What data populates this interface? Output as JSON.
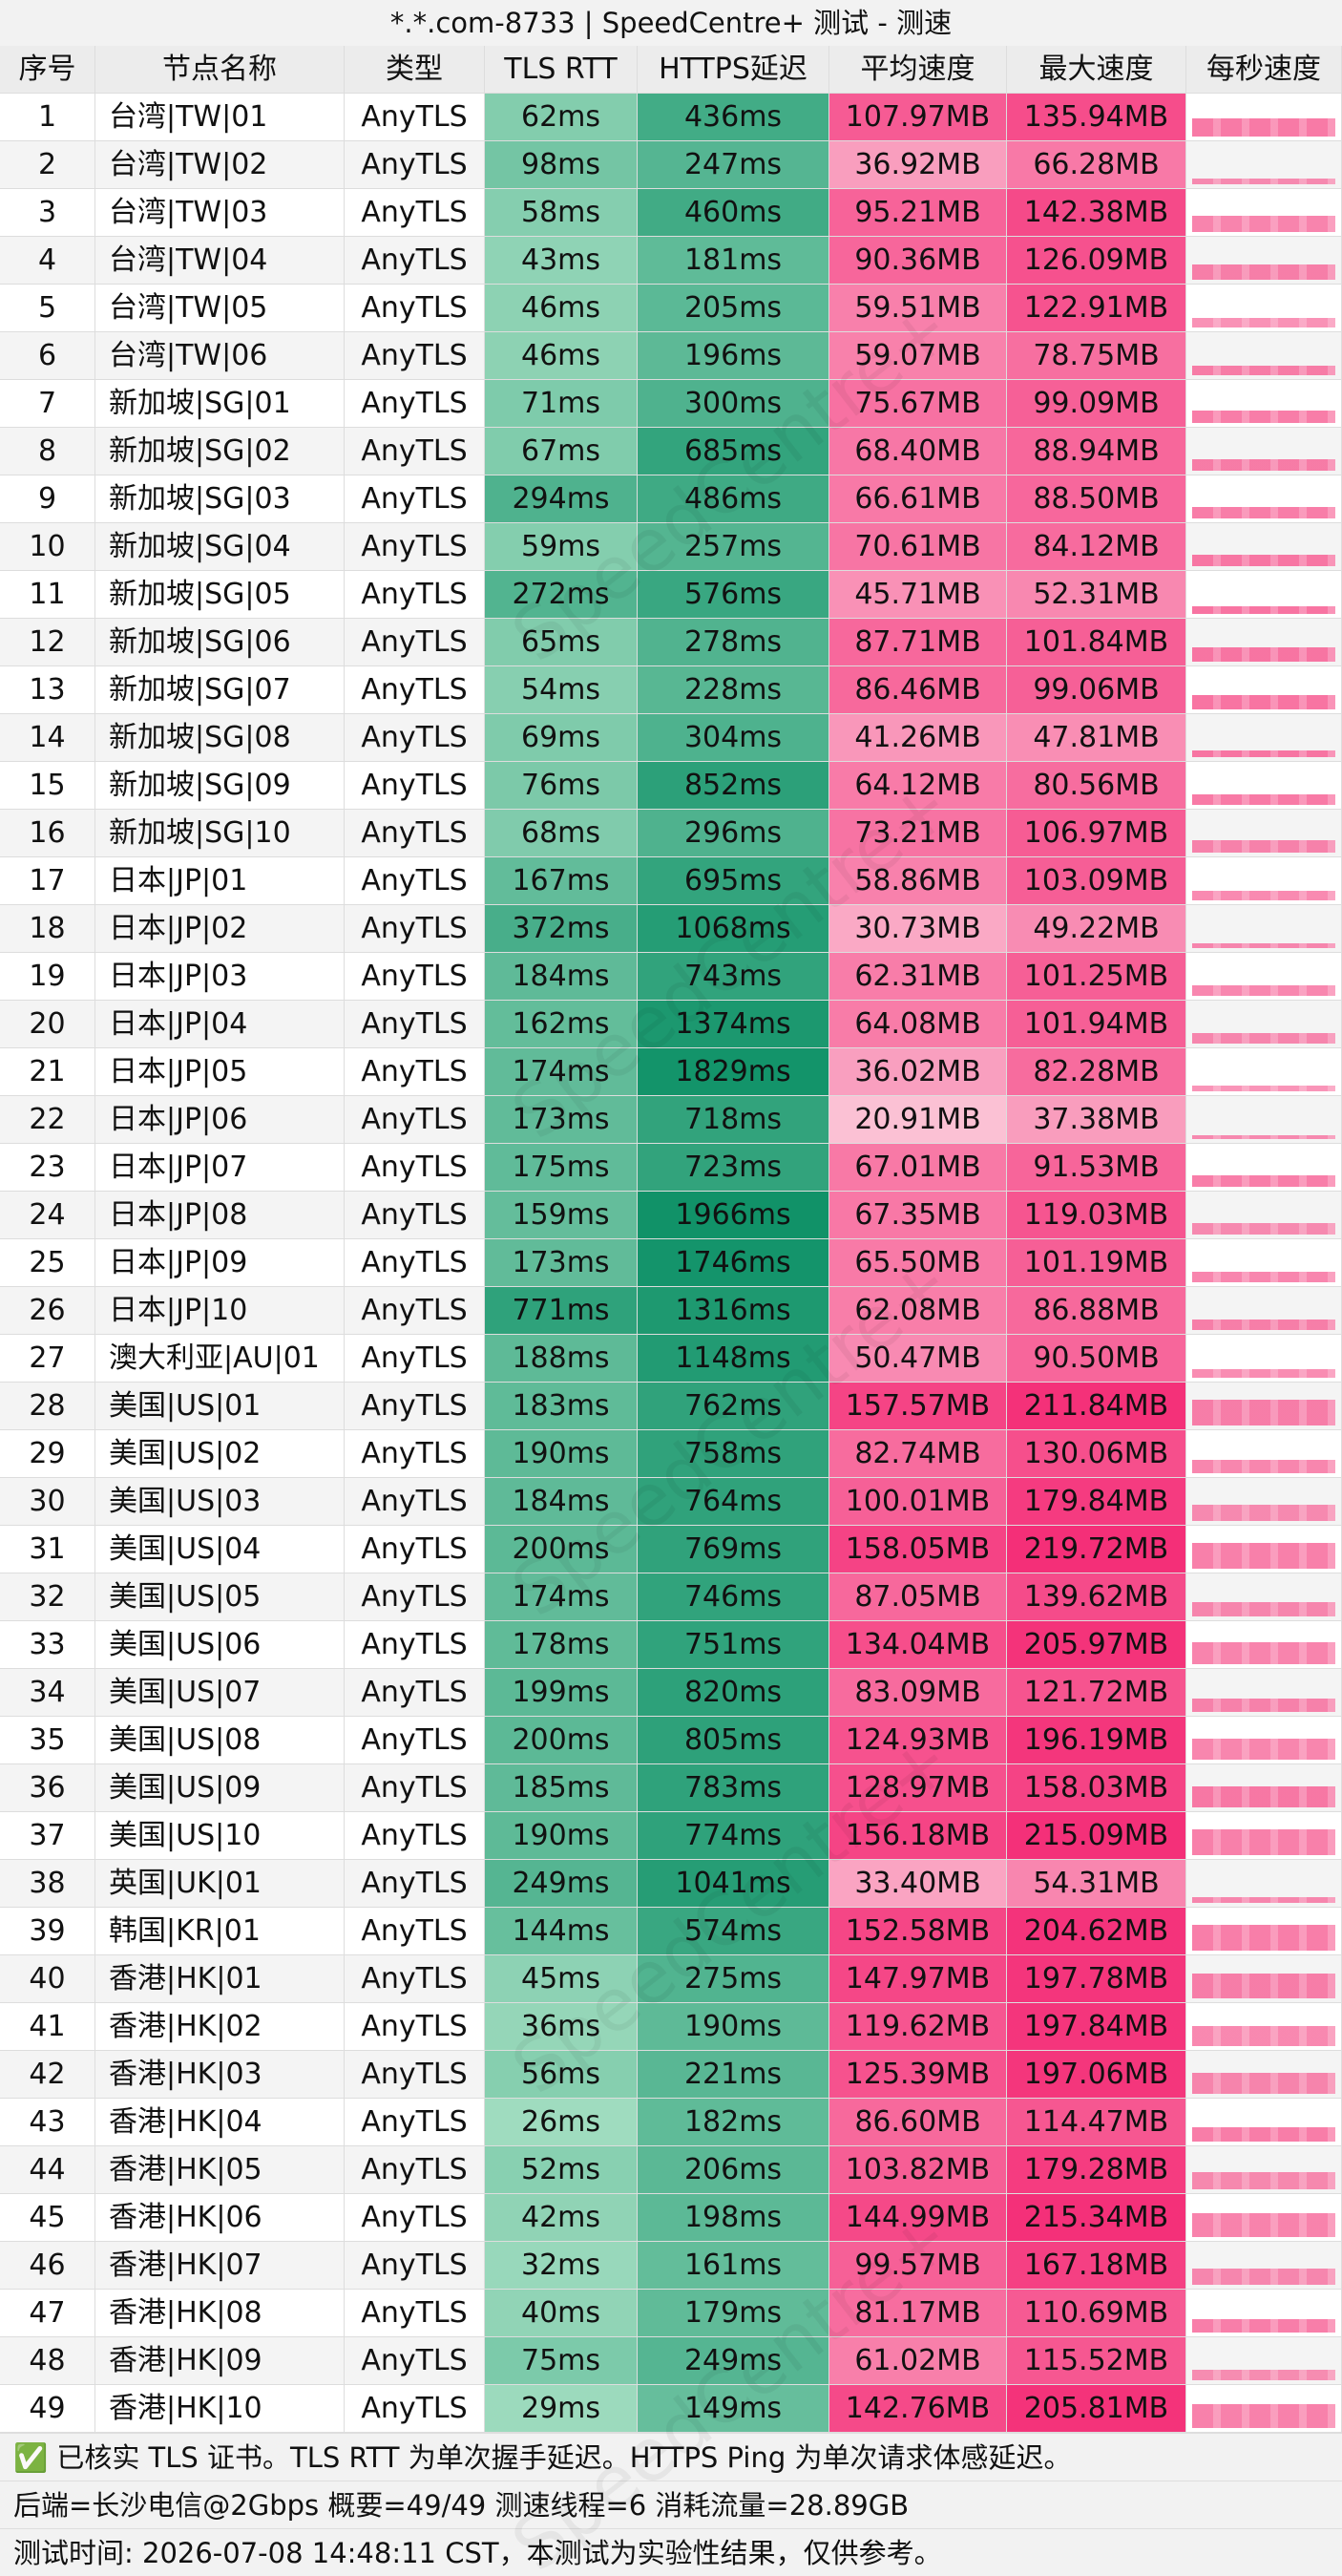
{
  "title": "*.*.com-8733 | SpeedCentre+ 测试 - 测速",
  "watermark": "SpeedCentre+",
  "table": {
    "headers": [
      "序号",
      "节点名称",
      "类型",
      "TLS RTT",
      "HTTPS延迟",
      "平均速度",
      "最大速度",
      "每秒速度"
    ],
    "rows": [
      [
        "1",
        "台湾|TW|01",
        "AnyTLS",
        "62ms",
        "436ms",
        "107.97MB",
        "135.94MB"
      ],
      [
        "2",
        "台湾|TW|02",
        "AnyTLS",
        "98ms",
        "247ms",
        "36.92MB",
        "66.28MB"
      ],
      [
        "3",
        "台湾|TW|03",
        "AnyTLS",
        "58ms",
        "460ms",
        "95.21MB",
        "142.38MB"
      ],
      [
        "4",
        "台湾|TW|04",
        "AnyTLS",
        "43ms",
        "181ms",
        "90.36MB",
        "126.09MB"
      ],
      [
        "5",
        "台湾|TW|05",
        "AnyTLS",
        "46ms",
        "205ms",
        "59.51MB",
        "122.91MB"
      ],
      [
        "6",
        "台湾|TW|06",
        "AnyTLS",
        "46ms",
        "196ms",
        "59.07MB",
        "78.75MB"
      ],
      [
        "7",
        "新加坡|SG|01",
        "AnyTLS",
        "71ms",
        "300ms",
        "75.67MB",
        "99.09MB"
      ],
      [
        "8",
        "新加坡|SG|02",
        "AnyTLS",
        "67ms",
        "685ms",
        "68.40MB",
        "88.94MB"
      ],
      [
        "9",
        "新加坡|SG|03",
        "AnyTLS",
        "294ms",
        "486ms",
        "66.61MB",
        "88.50MB"
      ],
      [
        "10",
        "新加坡|SG|04",
        "AnyTLS",
        "59ms",
        "257ms",
        "70.61MB",
        "84.12MB"
      ],
      [
        "11",
        "新加坡|SG|05",
        "AnyTLS",
        "272ms",
        "576ms",
        "45.71MB",
        "52.31MB"
      ],
      [
        "12",
        "新加坡|SG|06",
        "AnyTLS",
        "65ms",
        "278ms",
        "87.71MB",
        "101.84MB"
      ],
      [
        "13",
        "新加坡|SG|07",
        "AnyTLS",
        "54ms",
        "228ms",
        "86.46MB",
        "99.06MB"
      ],
      [
        "14",
        "新加坡|SG|08",
        "AnyTLS",
        "69ms",
        "304ms",
        "41.26MB",
        "47.81MB"
      ],
      [
        "15",
        "新加坡|SG|09",
        "AnyTLS",
        "76ms",
        "852ms",
        "64.12MB",
        "80.56MB"
      ],
      [
        "16",
        "新加坡|SG|10",
        "AnyTLS",
        "68ms",
        "296ms",
        "73.21MB",
        "106.97MB"
      ],
      [
        "17",
        "日本|JP|01",
        "AnyTLS",
        "167ms",
        "695ms",
        "58.86MB",
        "103.09MB"
      ],
      [
        "18",
        "日本|JP|02",
        "AnyTLS",
        "372ms",
        "1068ms",
        "30.73MB",
        "49.22MB"
      ],
      [
        "19",
        "日本|JP|03",
        "AnyTLS",
        "184ms",
        "743ms",
        "62.31MB",
        "101.25MB"
      ],
      [
        "20",
        "日本|JP|04",
        "AnyTLS",
        "162ms",
        "1374ms",
        "64.08MB",
        "101.94MB"
      ],
      [
        "21",
        "日本|JP|05",
        "AnyTLS",
        "174ms",
        "1829ms",
        "36.02MB",
        "82.28MB"
      ],
      [
        "22",
        "日本|JP|06",
        "AnyTLS",
        "173ms",
        "718ms",
        "20.91MB",
        "37.38MB"
      ],
      [
        "23",
        "日本|JP|07",
        "AnyTLS",
        "175ms",
        "723ms",
        "67.01MB",
        "91.53MB"
      ],
      [
        "24",
        "日本|JP|08",
        "AnyTLS",
        "159ms",
        "1966ms",
        "67.35MB",
        "119.03MB"
      ],
      [
        "25",
        "日本|JP|09",
        "AnyTLS",
        "173ms",
        "1746ms",
        "65.50MB",
        "101.19MB"
      ],
      [
        "26",
        "日本|JP|10",
        "AnyTLS",
        "771ms",
        "1316ms",
        "62.08MB",
        "86.88MB"
      ],
      [
        "27",
        "澳大利亚|AU|01",
        "AnyTLS",
        "188ms",
        "1148ms",
        "50.47MB",
        "90.50MB"
      ],
      [
        "28",
        "美国|US|01",
        "AnyTLS",
        "183ms",
        "762ms",
        "157.57MB",
        "211.84MB"
      ],
      [
        "29",
        "美国|US|02",
        "AnyTLS",
        "190ms",
        "758ms",
        "82.74MB",
        "130.06MB"
      ],
      [
        "30",
        "美国|US|03",
        "AnyTLS",
        "184ms",
        "764ms",
        "100.01MB",
        "179.84MB"
      ],
      [
        "31",
        "美国|US|04",
        "AnyTLS",
        "200ms",
        "769ms",
        "158.05MB",
        "219.72MB"
      ],
      [
        "32",
        "美国|US|05",
        "AnyTLS",
        "174ms",
        "746ms",
        "87.05MB",
        "139.62MB"
      ],
      [
        "33",
        "美国|US|06",
        "AnyTLS",
        "178ms",
        "751ms",
        "134.04MB",
        "205.97MB"
      ],
      [
        "34",
        "美国|US|07",
        "AnyTLS",
        "199ms",
        "820ms",
        "83.09MB",
        "121.72MB"
      ],
      [
        "35",
        "美国|US|08",
        "AnyTLS",
        "200ms",
        "805ms",
        "124.93MB",
        "196.19MB"
      ],
      [
        "36",
        "美国|US|09",
        "AnyTLS",
        "185ms",
        "783ms",
        "128.97MB",
        "158.03MB"
      ],
      [
        "37",
        "美国|US|10",
        "AnyTLS",
        "190ms",
        "774ms",
        "156.18MB",
        "215.09MB"
      ],
      [
        "38",
        "英国|UK|01",
        "AnyTLS",
        "249ms",
        "1041ms",
        "33.40MB",
        "54.31MB"
      ],
      [
        "39",
        "韩国|KR|01",
        "AnyTLS",
        "144ms",
        "574ms",
        "152.58MB",
        "204.62MB"
      ],
      [
        "40",
        "香港|HK|01",
        "AnyTLS",
        "45ms",
        "275ms",
        "147.97MB",
        "197.78MB"
      ],
      [
        "41",
        "香港|HK|02",
        "AnyTLS",
        "36ms",
        "190ms",
        "119.62MB",
        "197.84MB"
      ],
      [
        "42",
        "香港|HK|03",
        "AnyTLS",
        "56ms",
        "221ms",
        "125.39MB",
        "197.06MB"
      ],
      [
        "43",
        "香港|HK|04",
        "AnyTLS",
        "26ms",
        "182ms",
        "86.60MB",
        "114.47MB"
      ],
      [
        "44",
        "香港|HK|05",
        "AnyTLS",
        "52ms",
        "206ms",
        "103.82MB",
        "179.28MB"
      ],
      [
        "45",
        "香港|HK|06",
        "AnyTLS",
        "42ms",
        "198ms",
        "144.99MB",
        "215.34MB"
      ],
      [
        "46",
        "香港|HK|07",
        "AnyTLS",
        "32ms",
        "161ms",
        "99.57MB",
        "167.18MB"
      ],
      [
        "47",
        "香港|HK|08",
        "AnyTLS",
        "40ms",
        "179ms",
        "81.17MB",
        "110.69MB"
      ],
      [
        "48",
        "香港|HK|09",
        "AnyTLS",
        "75ms",
        "249ms",
        "61.02MB",
        "115.52MB"
      ],
      [
        "49",
        "香港|HK|10",
        "AnyTLS",
        "29ms",
        "149ms",
        "142.76MB",
        "205.81MB"
      ]
    ]
  },
  "footer": [
    "✅ 已核实 TLS 证书。TLS RTT 为单次握手延迟。HTTPS Ping 为单次请求体感延迟。",
    "后端=长沙电信@2Gbps 概要=49/49 测速线程=6 消耗流量=28.89GB",
    "测试时间: 2026-07-08 14:48:11 CST，本测试为实验性结果，仅供参考。"
  ]
}
